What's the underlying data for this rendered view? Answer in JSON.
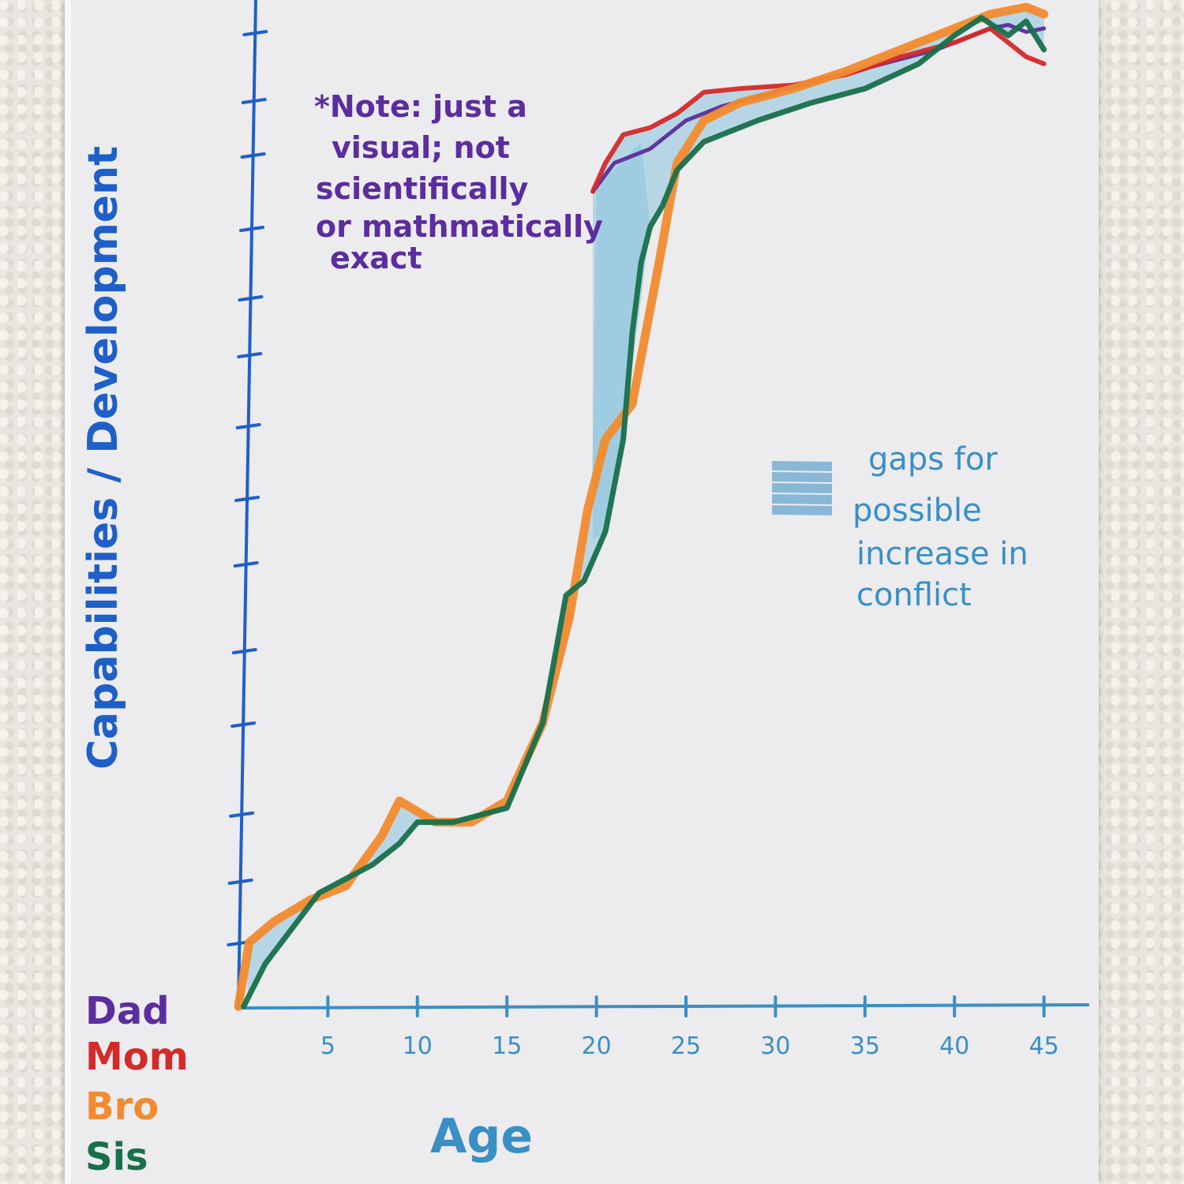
{
  "chart_data": {
    "type": "line",
    "title": "",
    "xlabel": "Age",
    "ylabel": "Capabilities / Development",
    "x_ticks": [
      5,
      10,
      15,
      20,
      25,
      30,
      35,
      40,
      45
    ],
    "xlim": [
      0,
      47
    ],
    "ylim": [
      0,
      14
    ],
    "series": [
      {
        "name": "Dad",
        "color": "#5b2d9e",
        "x": [
          19.8,
          21,
          23,
          25,
          27,
          30,
          33,
          36,
          39,
          41,
          42,
          43,
          44,
          45
        ],
        "y": [
          11.5,
          11.9,
          12.1,
          12.5,
          12.7,
          12.9,
          13.1,
          13.3,
          13.5,
          13.7,
          13.8,
          13.85,
          13.75,
          13.8
        ]
      },
      {
        "name": "Mom",
        "color": "#d42a2a",
        "x": [
          19.8,
          20.5,
          21.5,
          23,
          24.5,
          26,
          28,
          31,
          34,
          37,
          40,
          42,
          43,
          44,
          45
        ],
        "y": [
          11.5,
          11.9,
          12.3,
          12.4,
          12.6,
          12.9,
          12.95,
          13.0,
          13.15,
          13.4,
          13.6,
          13.8,
          13.6,
          13.4,
          13.3
        ]
      },
      {
        "name": "Bro",
        "color": "#f28b2e",
        "x": [
          0,
          0.6,
          2,
          4,
          6,
          8,
          9,
          11,
          13,
          15,
          17,
          18.5,
          19.5,
          20.5,
          22,
          23.5,
          24.5,
          26,
          28,
          31,
          34,
          37,
          40,
          42,
          44,
          45
        ],
        "y": [
          0,
          0.9,
          1.2,
          1.5,
          1.7,
          2.4,
          2.9,
          2.6,
          2.6,
          2.9,
          4.0,
          5.5,
          7.0,
          8.0,
          8.5,
          10.5,
          11.9,
          12.5,
          12.75,
          12.95,
          13.2,
          13.5,
          13.8,
          14.0,
          14.1,
          14.0
        ]
      },
      {
        "name": "Sis",
        "color": "#17704a",
        "x": [
          0.3,
          1.5,
          3,
          4.5,
          6,
          7.5,
          9,
          10,
          12,
          15,
          17,
          18.3,
          19.3,
          20.5,
          21.5,
          22,
          22.5,
          23,
          23.7,
          24.5,
          26,
          29,
          32,
          35,
          38,
          40,
          41.5,
          43,
          44,
          45
        ],
        "y": [
          0,
          0.6,
          1.1,
          1.6,
          1.8,
          2.0,
          2.3,
          2.6,
          2.6,
          2.8,
          4.0,
          5.8,
          6.0,
          6.7,
          8.0,
          9.5,
          10.5,
          11.0,
          11.3,
          11.8,
          12.2,
          12.5,
          12.75,
          12.95,
          13.3,
          13.7,
          13.95,
          13.7,
          13.9,
          13.5
        ]
      }
    ],
    "annotations": [
      {
        "lines": [
          "*Note: just a",
          "visual; not",
          "scientifically",
          "or mathmatically",
          "exact"
        ],
        "color": "#5b2d9e"
      },
      {
        "lines": [
          "gaps for",
          "possible",
          "increase in",
          "conflict"
        ],
        "color": "#3a8fc4"
      }
    ],
    "legend": {
      "placement": "bottom-left"
    },
    "fill_color": "#8cc4df"
  }
}
